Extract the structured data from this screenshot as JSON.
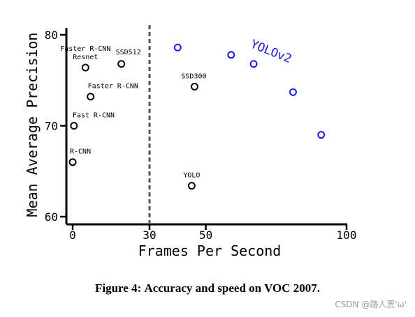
{
  "chart_data": {
    "type": "scatter",
    "title": "",
    "xlabel": "Frames Per Second",
    "ylabel": "Mean Average Precision",
    "xticks": [
      {
        "value": 0,
        "label": "0"
      },
      {
        "value": 30,
        "label": "30"
      },
      {
        "value": 50,
        "label": "50"
      },
      {
        "value": 100,
        "label": "100"
      }
    ],
    "yticks": [
      {
        "value": 60,
        "label": "60"
      },
      {
        "value": 70,
        "label": "70"
      },
      {
        "value": 80,
        "label": "80"
      }
    ],
    "ylim": [
      59.5,
      81
    ],
    "realtime_threshold_fps": 30,
    "colors": {
      "baseline": "#000000",
      "yolov2": "#1a1ae6",
      "threshold": "#555555"
    },
    "series": [
      {
        "points": [
          {
            "x": 0,
            "y": 66.0,
            "label": "R-CNN"
          },
          {
            "x": 0.5,
            "y": 70.0,
            "label": "Fast R-CNN"
          },
          {
            "x": 7,
            "y": 73.2,
            "label": "Faster R-CNN"
          },
          {
            "x": 5,
            "y": 76.4,
            "label": "Faster R-CNN\nResnet"
          },
          {
            "x": 19,
            "y": 76.8,
            "label": "SSD512"
          },
          {
            "x": 46,
            "y": 74.3,
            "label": "SSD300"
          },
          {
            "x": 45,
            "y": 63.4,
            "label": "YOLO"
          }
        ]
      },
      {
        "name": "YOLOv2",
        "points": [
          {
            "x": 40,
            "y": 78.6
          },
          {
            "x": 59,
            "y": 77.8
          },
          {
            "x": 67,
            "y": 76.8
          },
          {
            "x": 81,
            "y": 73.7
          },
          {
            "x": 91,
            "y": 69.0
          }
        ]
      }
    ]
  },
  "caption": {
    "label": "Figure 4:",
    "text": "Accuracy and speed on VOC 2007."
  },
  "watermark": "CSDN @路人贾'ω'"
}
